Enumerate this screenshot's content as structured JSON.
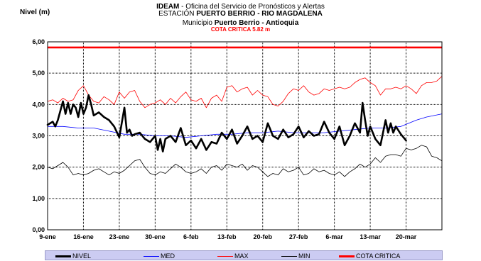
{
  "header": {
    "line1_bold": "IDEAM",
    "line1_rest": " - Oficina del Servicio de Pronósticos  y Alertas",
    "line2_pre": "ESTACIÓN ",
    "line2_bold": "PUERTO BERRIO - RIO MAGDALENA",
    "line3_pre": "Municipio ",
    "line3_bold": "Puerto Berrio - Antioquia",
    "line4": "COTA CRITICA 5.82 m"
  },
  "colors": {
    "nivel": "#000000",
    "med": "#0000ff",
    "max": "#ff0000",
    "min": "#000000",
    "cota": "#ff0000",
    "legend_bg": "#ccccf2"
  },
  "chart_data": {
    "type": "line",
    "ylabel": "Nivel (m)",
    "ylim": [
      0,
      6
    ],
    "y_ticks": [
      "0,00",
      "1,00",
      "2,00",
      "3,00",
      "4,00",
      "5,00",
      "6,00"
    ],
    "x_range_days": [
      0,
      77
    ],
    "x_tick_labels": [
      "9-ene",
      "16-ene",
      "23-ene",
      "30-ene",
      "6-feb",
      "13-feb",
      "20-feb",
      "27-feb",
      "6-mar",
      "13-mar",
      "20-mar"
    ],
    "grid": true,
    "legend_position": "bottom",
    "cota_critica": 5.82,
    "series": [
      {
        "name": "NIVEL",
        "x": [
          0,
          1,
          1.5,
          2,
          3,
          3.5,
          4,
          4.5,
          5,
          5.5,
          6,
          6.5,
          7,
          7.5,
          8,
          8.5,
          9,
          10,
          11,
          12,
          13,
          14,
          15,
          15.5,
          16,
          16.5,
          17,
          18,
          19,
          20,
          21,
          21.5,
          22,
          22.5,
          23,
          24,
          25,
          26,
          27,
          28,
          29,
          30,
          31,
          32,
          33,
          34,
          35,
          36,
          37,
          38,
          39,
          40,
          41,
          42,
          43,
          44,
          45,
          46,
          47,
          48,
          49,
          50,
          51,
          52,
          53,
          54,
          55,
          56,
          57,
          58,
          59,
          60,
          61,
          61.5,
          62,
          62.5,
          63,
          64,
          65,
          66,
          66.5,
          67,
          67.5,
          68,
          69,
          70
        ],
        "values": [
          3.35,
          3.45,
          3.3,
          3.5,
          4.1,
          3.7,
          4.05,
          3.7,
          4.0,
          3.9,
          3.6,
          4.05,
          3.7,
          3.9,
          4.3,
          4.0,
          3.65,
          3.75,
          3.6,
          3.5,
          3.3,
          2.95,
          3.9,
          3.1,
          3.2,
          3.0,
          3.05,
          3.1,
          2.9,
          2.8,
          3.0,
          2.55,
          2.9,
          2.5,
          2.9,
          3.0,
          2.8,
          3.25,
          2.7,
          2.85,
          2.6,
          2.9,
          2.55,
          2.8,
          2.75,
          3.1,
          2.9,
          3.2,
          2.75,
          3.0,
          3.3,
          2.9,
          3.0,
          2.8,
          3.4,
          3.0,
          2.9,
          3.2,
          2.95,
          3.05,
          3.3,
          2.95,
          3.15,
          3.0,
          3.05,
          3.45,
          3.1,
          2.9,
          3.3,
          2.7,
          3.0,
          3.4,
          3.1,
          4.05,
          3.5,
          3.0,
          3.3,
          2.9,
          2.7,
          3.5,
          3.1,
          3.4,
          3.1,
          3.3,
          3.05,
          2.85
        ]
      },
      {
        "name": "MED",
        "x": [
          0,
          3,
          6,
          9,
          12,
          15,
          18,
          21,
          24,
          27,
          30,
          33,
          36,
          39,
          42,
          45,
          48,
          51,
          54,
          57,
          60,
          63,
          66,
          69,
          72,
          74,
          77
        ],
        "values": [
          3.3,
          3.3,
          3.25,
          3.25,
          3.15,
          3.05,
          3.05,
          3.0,
          3.0,
          2.95,
          3.0,
          3.05,
          3.05,
          3.1,
          3.1,
          3.15,
          3.1,
          3.1,
          3.1,
          3.15,
          3.2,
          3.25,
          3.25,
          3.3,
          3.5,
          3.6,
          3.7
        ]
      },
      {
        "name": "MAX",
        "x": [
          0,
          1,
          2,
          3,
          4,
          5,
          6,
          7,
          8,
          9,
          10,
          11,
          12,
          13,
          14,
          15,
          16,
          17,
          18,
          19,
          20,
          21,
          22,
          23,
          24,
          25,
          26,
          27,
          28,
          29,
          30,
          31,
          32,
          33,
          34,
          35,
          36,
          37,
          38,
          39,
          40,
          41,
          42,
          43,
          44,
          45,
          46,
          47,
          48,
          49,
          50,
          51,
          52,
          53,
          54,
          55,
          56,
          57,
          58,
          59,
          60,
          61,
          62,
          63,
          64,
          65,
          66,
          67,
          68,
          69,
          70,
          71,
          72,
          73,
          74,
          75,
          76,
          77
        ],
        "values": [
          4.1,
          4.15,
          4.05,
          4.2,
          4.1,
          4.15,
          4.45,
          4.6,
          4.3,
          4.1,
          4.05,
          4.25,
          4.15,
          4.0,
          4.4,
          4.2,
          4.4,
          4.45,
          4.1,
          3.9,
          4.0,
          4.05,
          4.15,
          4.0,
          4.2,
          4.05,
          4.25,
          4.4,
          4.15,
          4.1,
          4.2,
          3.9,
          4.2,
          4.3,
          4.1,
          4.55,
          4.6,
          4.4,
          4.5,
          4.55,
          4.3,
          4.45,
          4.3,
          4.25,
          4.0,
          3.95,
          4.1,
          4.35,
          4.5,
          4.45,
          4.6,
          4.4,
          4.3,
          4.35,
          4.5,
          4.45,
          4.5,
          4.55,
          4.5,
          4.55,
          4.7,
          4.8,
          4.85,
          4.7,
          4.6,
          4.3,
          4.5,
          4.5,
          4.55,
          4.5,
          4.6,
          4.5,
          4.35,
          4.6,
          4.7,
          4.7,
          4.75,
          4.9
        ]
      },
      {
        "name": "MIN",
        "x": [
          0,
          1,
          2,
          3,
          4,
          5,
          6,
          7,
          8,
          9,
          10,
          11,
          12,
          13,
          14,
          15,
          16,
          17,
          18,
          19,
          20,
          21,
          22,
          23,
          24,
          25,
          26,
          27,
          28,
          29,
          30,
          31,
          32,
          33,
          34,
          35,
          36,
          37,
          38,
          39,
          40,
          41,
          42,
          43,
          44,
          45,
          46,
          47,
          48,
          49,
          50,
          51,
          52,
          53,
          54,
          55,
          56,
          57,
          58,
          59,
          60,
          61,
          62,
          63,
          64,
          65,
          66,
          67,
          68,
          69,
          70,
          71,
          72,
          73,
          74,
          75,
          76,
          77
        ],
        "values": [
          2.0,
          1.95,
          2.05,
          2.15,
          2.0,
          1.75,
          1.8,
          1.75,
          1.8,
          1.9,
          1.95,
          1.85,
          1.75,
          1.85,
          1.8,
          1.9,
          2.05,
          2.2,
          2.25,
          2.0,
          1.8,
          1.75,
          1.85,
          1.8,
          1.95,
          2.1,
          2.0,
          1.85,
          1.8,
          1.85,
          1.95,
          1.8,
          2.0,
          2.05,
          1.9,
          2.1,
          2.05,
          2.0,
          2.1,
          1.9,
          2.05,
          2.0,
          1.85,
          1.7,
          1.8,
          1.75,
          1.95,
          1.85,
          1.9,
          2.0,
          1.75,
          1.8,
          1.95,
          1.85,
          1.9,
          1.8,
          1.75,
          1.85,
          1.7,
          1.85,
          1.95,
          2.1,
          2.0,
          2.1,
          2.3,
          2.15,
          2.35,
          2.4,
          2.4,
          2.35,
          2.6,
          2.55,
          2.6,
          2.7,
          2.65,
          2.35,
          2.3,
          2.2
        ]
      }
    ]
  }
}
